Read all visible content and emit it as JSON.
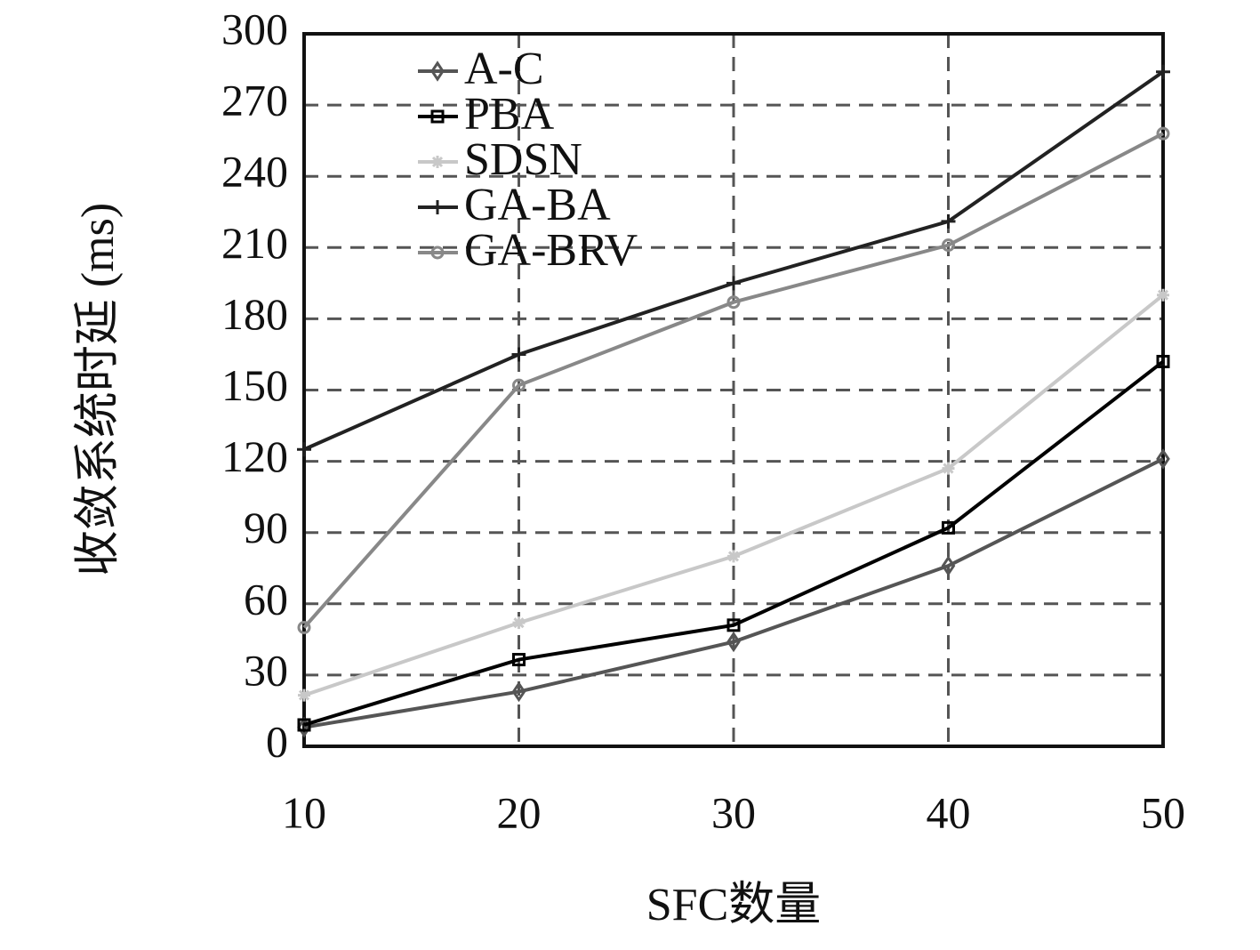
{
  "chart_data": {
    "type": "line",
    "x_label": "SFC数量",
    "y_label": "收敛系统时延 (ms)",
    "x": [
      10,
      20,
      30,
      40,
      50
    ],
    "xlim": [
      10,
      50
    ],
    "xticks": [
      10,
      20,
      30,
      40,
      50
    ],
    "ylim": [
      0,
      300
    ],
    "yticks": [
      0,
      30,
      60,
      90,
      120,
      150,
      180,
      210,
      240,
      270,
      300
    ],
    "grid": true,
    "legend": "upper left",
    "series": [
      {
        "name": "A-C",
        "color": "#555555",
        "marker": "diamond",
        "values": [
          8,
          23,
          44,
          76,
          121
        ]
      },
      {
        "name": "PBA",
        "color": "#000000",
        "marker": "square",
        "values": [
          9,
          36.5,
          51,
          92,
          162
        ]
      },
      {
        "name": "SDSN",
        "color": "#c8c8c8",
        "marker": "star",
        "values": [
          21.5,
          52,
          80,
          117,
          190
        ]
      },
      {
        "name": "GA-BA",
        "color": "#222222",
        "marker": "plus",
        "values": [
          125,
          165,
          195,
          221,
          284
        ]
      },
      {
        "name": "GA-BRV",
        "color": "#888888",
        "marker": "circle",
        "values": [
          50,
          152,
          187,
          211,
          258
        ]
      }
    ]
  }
}
